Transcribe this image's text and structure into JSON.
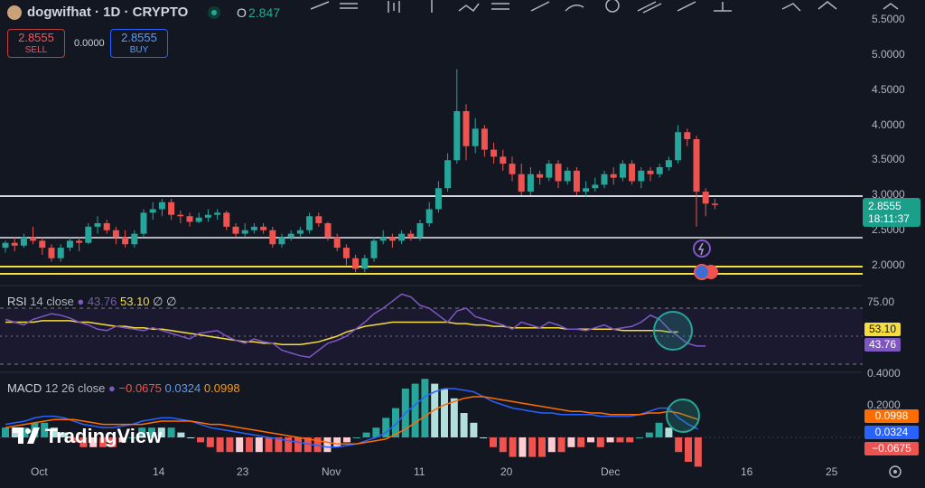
{
  "header": {
    "symbol_title": "dogwifhat · 1D · CRYPTO",
    "open_label": "O",
    "open_value": "2.847"
  },
  "trade": {
    "sell_price": "2.8555",
    "sell_label": "SELL",
    "spread": "0.0000",
    "buy_price": "2.8555",
    "buy_label": "BUY"
  },
  "price_axis": {
    "ticks": [
      "5.5000",
      "5.0000",
      "4.5000",
      "4.0000",
      "3.5000",
      "3.0000",
      "2.5000",
      "2.0000"
    ],
    "last_price": "2.8555",
    "countdown": "18:11:37"
  },
  "rsi": {
    "label": "RSI",
    "params": "14 close",
    "value1": "43.76",
    "value2": "53.10",
    "extra1": "∅",
    "extra2": "∅",
    "axis_top": "75.00",
    "badge_yellow": "53.10",
    "badge_purple": "43.76"
  },
  "macd": {
    "label": "MACD",
    "params": "12 26 close",
    "v1": "−0.0675",
    "v2": "0.0324",
    "v3": "0.0998",
    "axis_top": "0.4000",
    "axis_mid": "0.2000",
    "badge_orange": "0.0998",
    "badge_blue": "0.0324",
    "badge_red": "−0.0675"
  },
  "time_axis": {
    "labels": [
      "Oct",
      "14",
      "23",
      "Nov",
      "11",
      "20",
      "Dec",
      "16",
      "25"
    ]
  },
  "branding": {
    "logo_text": "TradingView"
  },
  "colors": {
    "up": "#26a69a",
    "down": "#ef5350",
    "rsi_line": "#7e57c2",
    "rsi_ma": "#f5dd3d",
    "macd_line": "#2962ff",
    "signal_line": "#ff6d00",
    "hist_up_strong": "#26a69a",
    "hist_up_weak": "#b2dfdb",
    "hist_down_strong": "#ef5350",
    "hist_down_weak": "#ffcdd2"
  }
}
